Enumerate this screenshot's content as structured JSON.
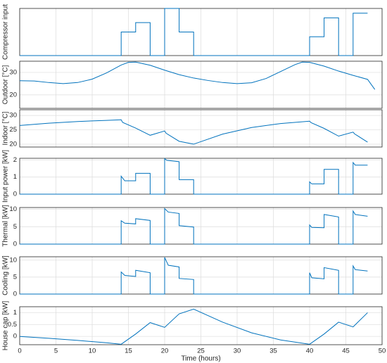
{
  "chart_data": [
    {
      "type": "line",
      "ylabel": "Compressor input",
      "color": "#0072bd",
      "xlim": [
        0,
        50
      ],
      "xticks": [
        0,
        5,
        10,
        15,
        20,
        25,
        30,
        35,
        40,
        45,
        50
      ],
      "ylim": [
        0,
        1
      ],
      "grid": true,
      "x": [
        0,
        14,
        14,
        16,
        16,
        18,
        18,
        20,
        20,
        22,
        22,
        24,
        24,
        40,
        40,
        42,
        42,
        44,
        44,
        46,
        46,
        48
      ],
      "values": [
        0,
        0,
        0.5,
        0.5,
        0.7,
        0.7,
        0,
        0,
        1,
        1,
        0.5,
        0.5,
        0,
        0,
        0.4,
        0.4,
        0.8,
        0.8,
        0,
        0,
        0.9,
        0.9
      ]
    },
    {
      "type": "line",
      "ylabel": "Outdoor [°C]",
      "color": "#0072bd",
      "xlim": [
        0,
        50
      ],
      "xticks": [
        0,
        5,
        10,
        15,
        20,
        25,
        30,
        35,
        40,
        45,
        50
      ],
      "ylim": [
        14,
        35
      ],
      "yticks": [
        20,
        30
      ],
      "grid": true,
      "x": [
        0,
        2,
        4,
        6,
        8,
        10,
        12,
        14,
        15,
        16,
        18,
        20,
        22,
        24,
        26,
        28,
        30,
        32,
        34,
        36,
        38,
        39,
        40,
        42,
        44,
        46,
        48,
        49
      ],
      "values": [
        26.3,
        26.2,
        25.5,
        25,
        25.5,
        27,
        29.8,
        33.3,
        34.5,
        34.6,
        33.2,
        31,
        29,
        27.5,
        26.4,
        25.5,
        25,
        25.4,
        27.3,
        30.4,
        33.5,
        34.6,
        34.5,
        32.8,
        30.6,
        28.7,
        26.9,
        22.4
      ]
    },
    {
      "type": "line",
      "ylabel": "Indoor [°C]",
      "color": "#0072bd",
      "xlim": [
        0,
        50
      ],
      "xticks": [
        0,
        5,
        10,
        15,
        20,
        25,
        30,
        35,
        40,
        45,
        50
      ],
      "ylim": [
        19,
        32
      ],
      "yticks": [
        20,
        25,
        30
      ],
      "grid": true,
      "x": [
        0,
        4,
        8,
        12,
        14,
        14.2,
        16,
        18,
        20,
        20.2,
        22,
        24,
        28,
        32,
        36,
        40,
        40.2,
        42,
        44,
        46,
        46.2,
        48
      ],
      "values": [
        26.5,
        27.3,
        27.9,
        28.3,
        28.5,
        27.6,
        25.6,
        23.1,
        24.6,
        23.8,
        21,
        20,
        23.5,
        25.8,
        27.2,
        28,
        27.5,
        25.5,
        22.8,
        24.2,
        23.6,
        20.7
      ]
    },
    {
      "type": "line",
      "ylabel": "Input power [kW]",
      "color": "#0072bd",
      "xlim": [
        0,
        50
      ],
      "xticks": [
        0,
        5,
        10,
        15,
        20,
        25,
        30,
        35,
        40,
        45,
        50
      ],
      "ylim": [
        0,
        2.1
      ],
      "yticks": [
        0,
        1,
        2
      ],
      "grid": true,
      "x": [
        0,
        14,
        14,
        14.5,
        16,
        16,
        18,
        18,
        20,
        20,
        20.3,
        22,
        22,
        24,
        24,
        40,
        40,
        40.3,
        42,
        42,
        44,
        44,
        46,
        46,
        46.3,
        48
      ],
      "values": [
        0,
        0,
        1.05,
        0.78,
        0.78,
        1.22,
        1.22,
        0,
        0,
        2.08,
        1.98,
        1.9,
        0.85,
        0.85,
        0,
        0,
        0.72,
        0.6,
        0.6,
        1.45,
        1.45,
        0,
        0,
        1.85,
        1.7,
        1.7
      ]
    },
    {
      "type": "line",
      "ylabel": "Thermal [kW]",
      "color": "#0072bd",
      "xlim": [
        0,
        50
      ],
      "xticks": [
        0,
        5,
        10,
        15,
        20,
        25,
        30,
        35,
        40,
        45,
        50
      ],
      "ylim": [
        0,
        10.5
      ],
      "yticks": [
        0,
        5,
        10
      ],
      "grid": true,
      "x": [
        0,
        14,
        14,
        14.5,
        16,
        16,
        18,
        18,
        20,
        20,
        20.5,
        22,
        22,
        24,
        24,
        40,
        40,
        40.3,
        42,
        42,
        44,
        44,
        46,
        46,
        46.3,
        48
      ],
      "values": [
        0,
        0,
        6.7,
        6,
        5.8,
        7.3,
        6.8,
        0,
        0,
        10.2,
        9.2,
        8.8,
        5.3,
        4.9,
        0,
        0,
        5.5,
        4.8,
        4.7,
        8.5,
        7.8,
        0,
        0,
        9.5,
        8.5,
        8
      ]
    },
    {
      "type": "line",
      "ylabel": "Cooling [kW]",
      "color": "#0072bd",
      "xlim": [
        0,
        50
      ],
      "xticks": [
        0,
        5,
        10,
        15,
        20,
        25,
        30,
        35,
        40,
        45,
        50
      ],
      "ylim": [
        0,
        11
      ],
      "yticks": [
        0,
        5,
        10
      ],
      "grid": true,
      "x": [
        0,
        14,
        14,
        14.5,
        16,
        16,
        18,
        18,
        20,
        20,
        20.5,
        22,
        22,
        24,
        24,
        40,
        40,
        40.3,
        42,
        42,
        44,
        44,
        46,
        46,
        46.3,
        48
      ],
      "values": [
        0,
        0,
        6.5,
        5.5,
        5.2,
        7,
        6.3,
        0,
        0,
        10.8,
        8.5,
        8,
        4.6,
        4.3,
        0,
        0,
        6.3,
        4.8,
        4.5,
        7.8,
        7,
        0,
        0,
        8.3,
        7.2,
        6.8
      ]
    },
    {
      "type": "line",
      "ylabel": "House cap [kW]",
      "xlabel": "Time (hours)",
      "color": "#0072bd",
      "xlim": [
        0,
        50
      ],
      "xticks": [
        0,
        5,
        10,
        15,
        20,
        25,
        30,
        35,
        40,
        45,
        50
      ],
      "ylim": [
        -0.35,
        1.25
      ],
      "yticks": [
        0,
        0.5,
        1
      ],
      "grid": true,
      "x": [
        0,
        4,
        8,
        12,
        14,
        16,
        18,
        20,
        22,
        24,
        28,
        32,
        36,
        40,
        42,
        44,
        46,
        48
      ],
      "values": [
        0,
        -0.08,
        -0.17,
        -0.27,
        -0.33,
        0.1,
        0.58,
        0.38,
        0.95,
        1.15,
        0.6,
        0.15,
        -0.15,
        -0.33,
        0.1,
        0.6,
        0.4,
        1.0
      ]
    }
  ]
}
